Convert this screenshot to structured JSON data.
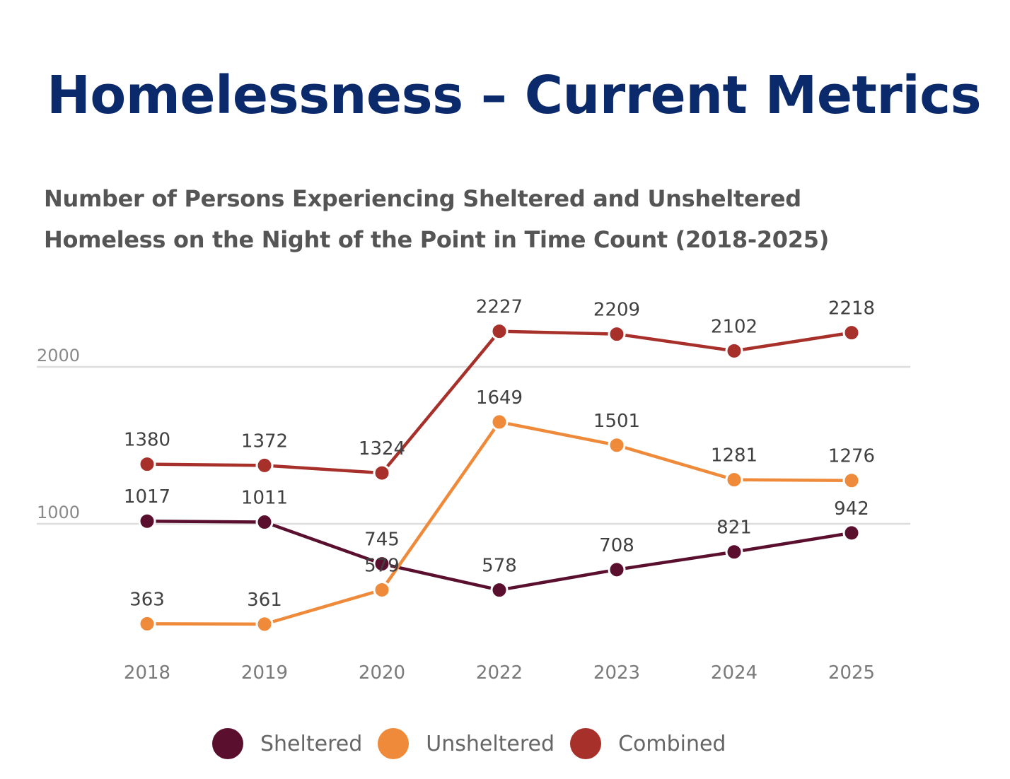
{
  "page": {
    "title": "Homelessness – Current Metrics"
  },
  "chart_data": {
    "type": "line",
    "title_lines": [
      "Number of Persons Experiencing Sheltered and Unsheltered",
      "Homeless on the Night of the Point in Time Count (2018-2025)"
    ],
    "categories": [
      "2018",
      "2019",
      "2020",
      "2022",
      "2023",
      "2024",
      "2025"
    ],
    "series": [
      {
        "name": "Sheltered",
        "color": "#5a0f2e",
        "values": [
          1017,
          1011,
          745,
          578,
          708,
          821,
          942
        ]
      },
      {
        "name": "Unsheltered",
        "color": "#ef8a3a",
        "values": [
          363,
          361,
          579,
          1649,
          1501,
          1281,
          1276
        ]
      },
      {
        "name": "Combined",
        "color": "#a8302a",
        "values": [
          1380,
          1372,
          1324,
          2227,
          2209,
          2102,
          2218
        ]
      }
    ],
    "y_ticks": [
      1000,
      2000
    ],
    "ylim": [
      0,
      2400
    ],
    "xlabel": "",
    "ylabel": "",
    "grid": true,
    "legend_position": "bottom"
  }
}
